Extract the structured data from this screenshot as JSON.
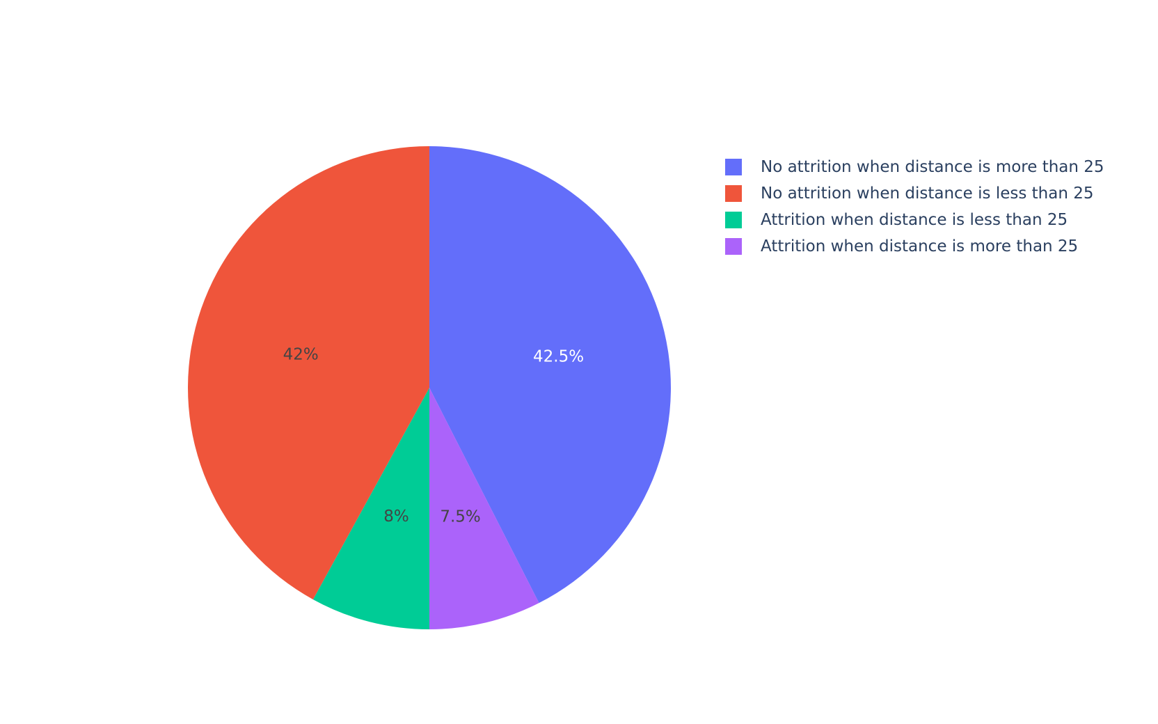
{
  "chart_data": {
    "type": "pie",
    "title": "",
    "direction": "clockwise",
    "start_angle_deg": 0,
    "legend_position": "top-right",
    "slices": [
      {
        "label": "No attrition when distance is more than 25",
        "value": 42.5,
        "text": "42.5%",
        "color": "#636efa",
        "text_color": "#ffffff"
      },
      {
        "label": "Attrition when distance is more than 25",
        "value": 7.5,
        "text": "7.5%",
        "color": "#ab63fa",
        "text_color": "#444444"
      },
      {
        "label": "Attrition when distance is less than 25",
        "value": 8,
        "text": "8%",
        "color": "#00cc96",
        "text_color": "#444444"
      },
      {
        "label": "No attrition when distance is less than 25",
        "value": 42,
        "text": "42%",
        "color": "#ef553b",
        "text_color": "#444444"
      }
    ],
    "legend": [
      {
        "label": "No attrition when distance is more than 25",
        "color": "#636efa"
      },
      {
        "label": "No attrition when distance is less than 25",
        "color": "#ef553b"
      },
      {
        "label": "Attrition when distance is less than 25",
        "color": "#00cc96"
      },
      {
        "label": "Attrition when distance is more than 25",
        "color": "#ab63fa"
      }
    ]
  }
}
